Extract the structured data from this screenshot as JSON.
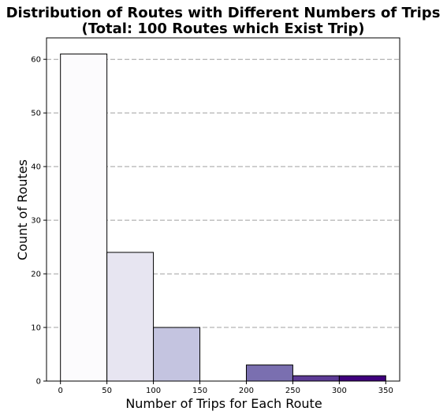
{
  "chart_data": {
    "type": "bar",
    "title_lines": [
      "Distribution of Routes with Different Numbers of Trips",
      "(Total: 100 Routes which Exist Trip)"
    ],
    "xlabel": "Number of Trips for Each Route",
    "ylabel": "Count of Routes",
    "bins": [
      {
        "from": 0,
        "to": 50,
        "count": 61,
        "color": "#fcfbfd"
      },
      {
        "from": 50,
        "to": 100,
        "count": 24,
        "color": "#e7e5f1"
      },
      {
        "from": 100,
        "to": 150,
        "count": 10,
        "color": "#c4c4e0"
      },
      {
        "from": 150,
        "to": 200,
        "count": 0,
        "color": "#9e9ac8"
      },
      {
        "from": 200,
        "to": 250,
        "count": 3,
        "color": "#7a6fb0"
      },
      {
        "from": 250,
        "to": 300,
        "count": 1,
        "color": "#5d3b96"
      },
      {
        "from": 300,
        "to": 350,
        "count": 1,
        "color": "#3f007d"
      }
    ],
    "xlim": [
      -15,
      365
    ],
    "ylim": [
      0,
      64
    ],
    "xticks": [
      0,
      50,
      100,
      150,
      200,
      250,
      300,
      350
    ],
    "yticks": [
      0,
      10,
      20,
      30,
      40,
      50,
      60
    ],
    "grid": "y-dashed",
    "bar_edge_color": "#000000",
    "grid_color": "#a0a0a0"
  }
}
